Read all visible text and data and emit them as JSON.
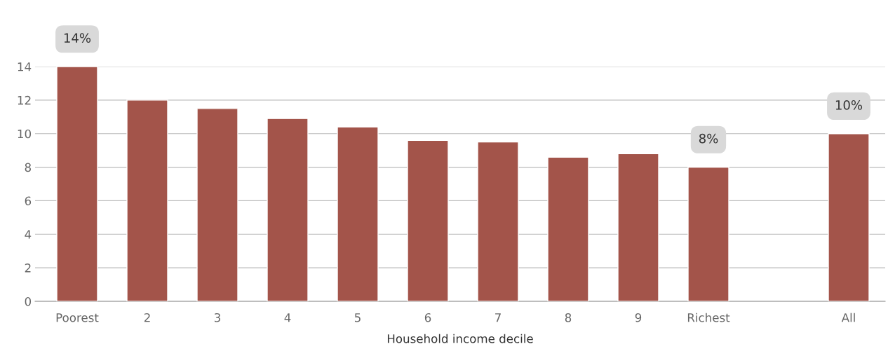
{
  "chart_data": {
    "type": "bar",
    "xlabel": "Household income decile",
    "categories": [
      "Poorest",
      "2",
      "3",
      "4",
      "5",
      "6",
      "7",
      "8",
      "9",
      "Richest",
      null,
      "All"
    ],
    "values": [
      14,
      12,
      11.5,
      10.9,
      10.4,
      9.6,
      9.5,
      8.6,
      8.8,
      8,
      null,
      10
    ],
    "value_labels": [
      "14%",
      null,
      null,
      null,
      null,
      null,
      null,
      null,
      null,
      "8%",
      null,
      "10%"
    ],
    "color": "#a3544a",
    "ylim": [
      0,
      14
    ],
    "yticks": [
      0,
      2,
      4,
      6,
      8,
      10,
      12,
      14
    ],
    "grid": "y"
  }
}
